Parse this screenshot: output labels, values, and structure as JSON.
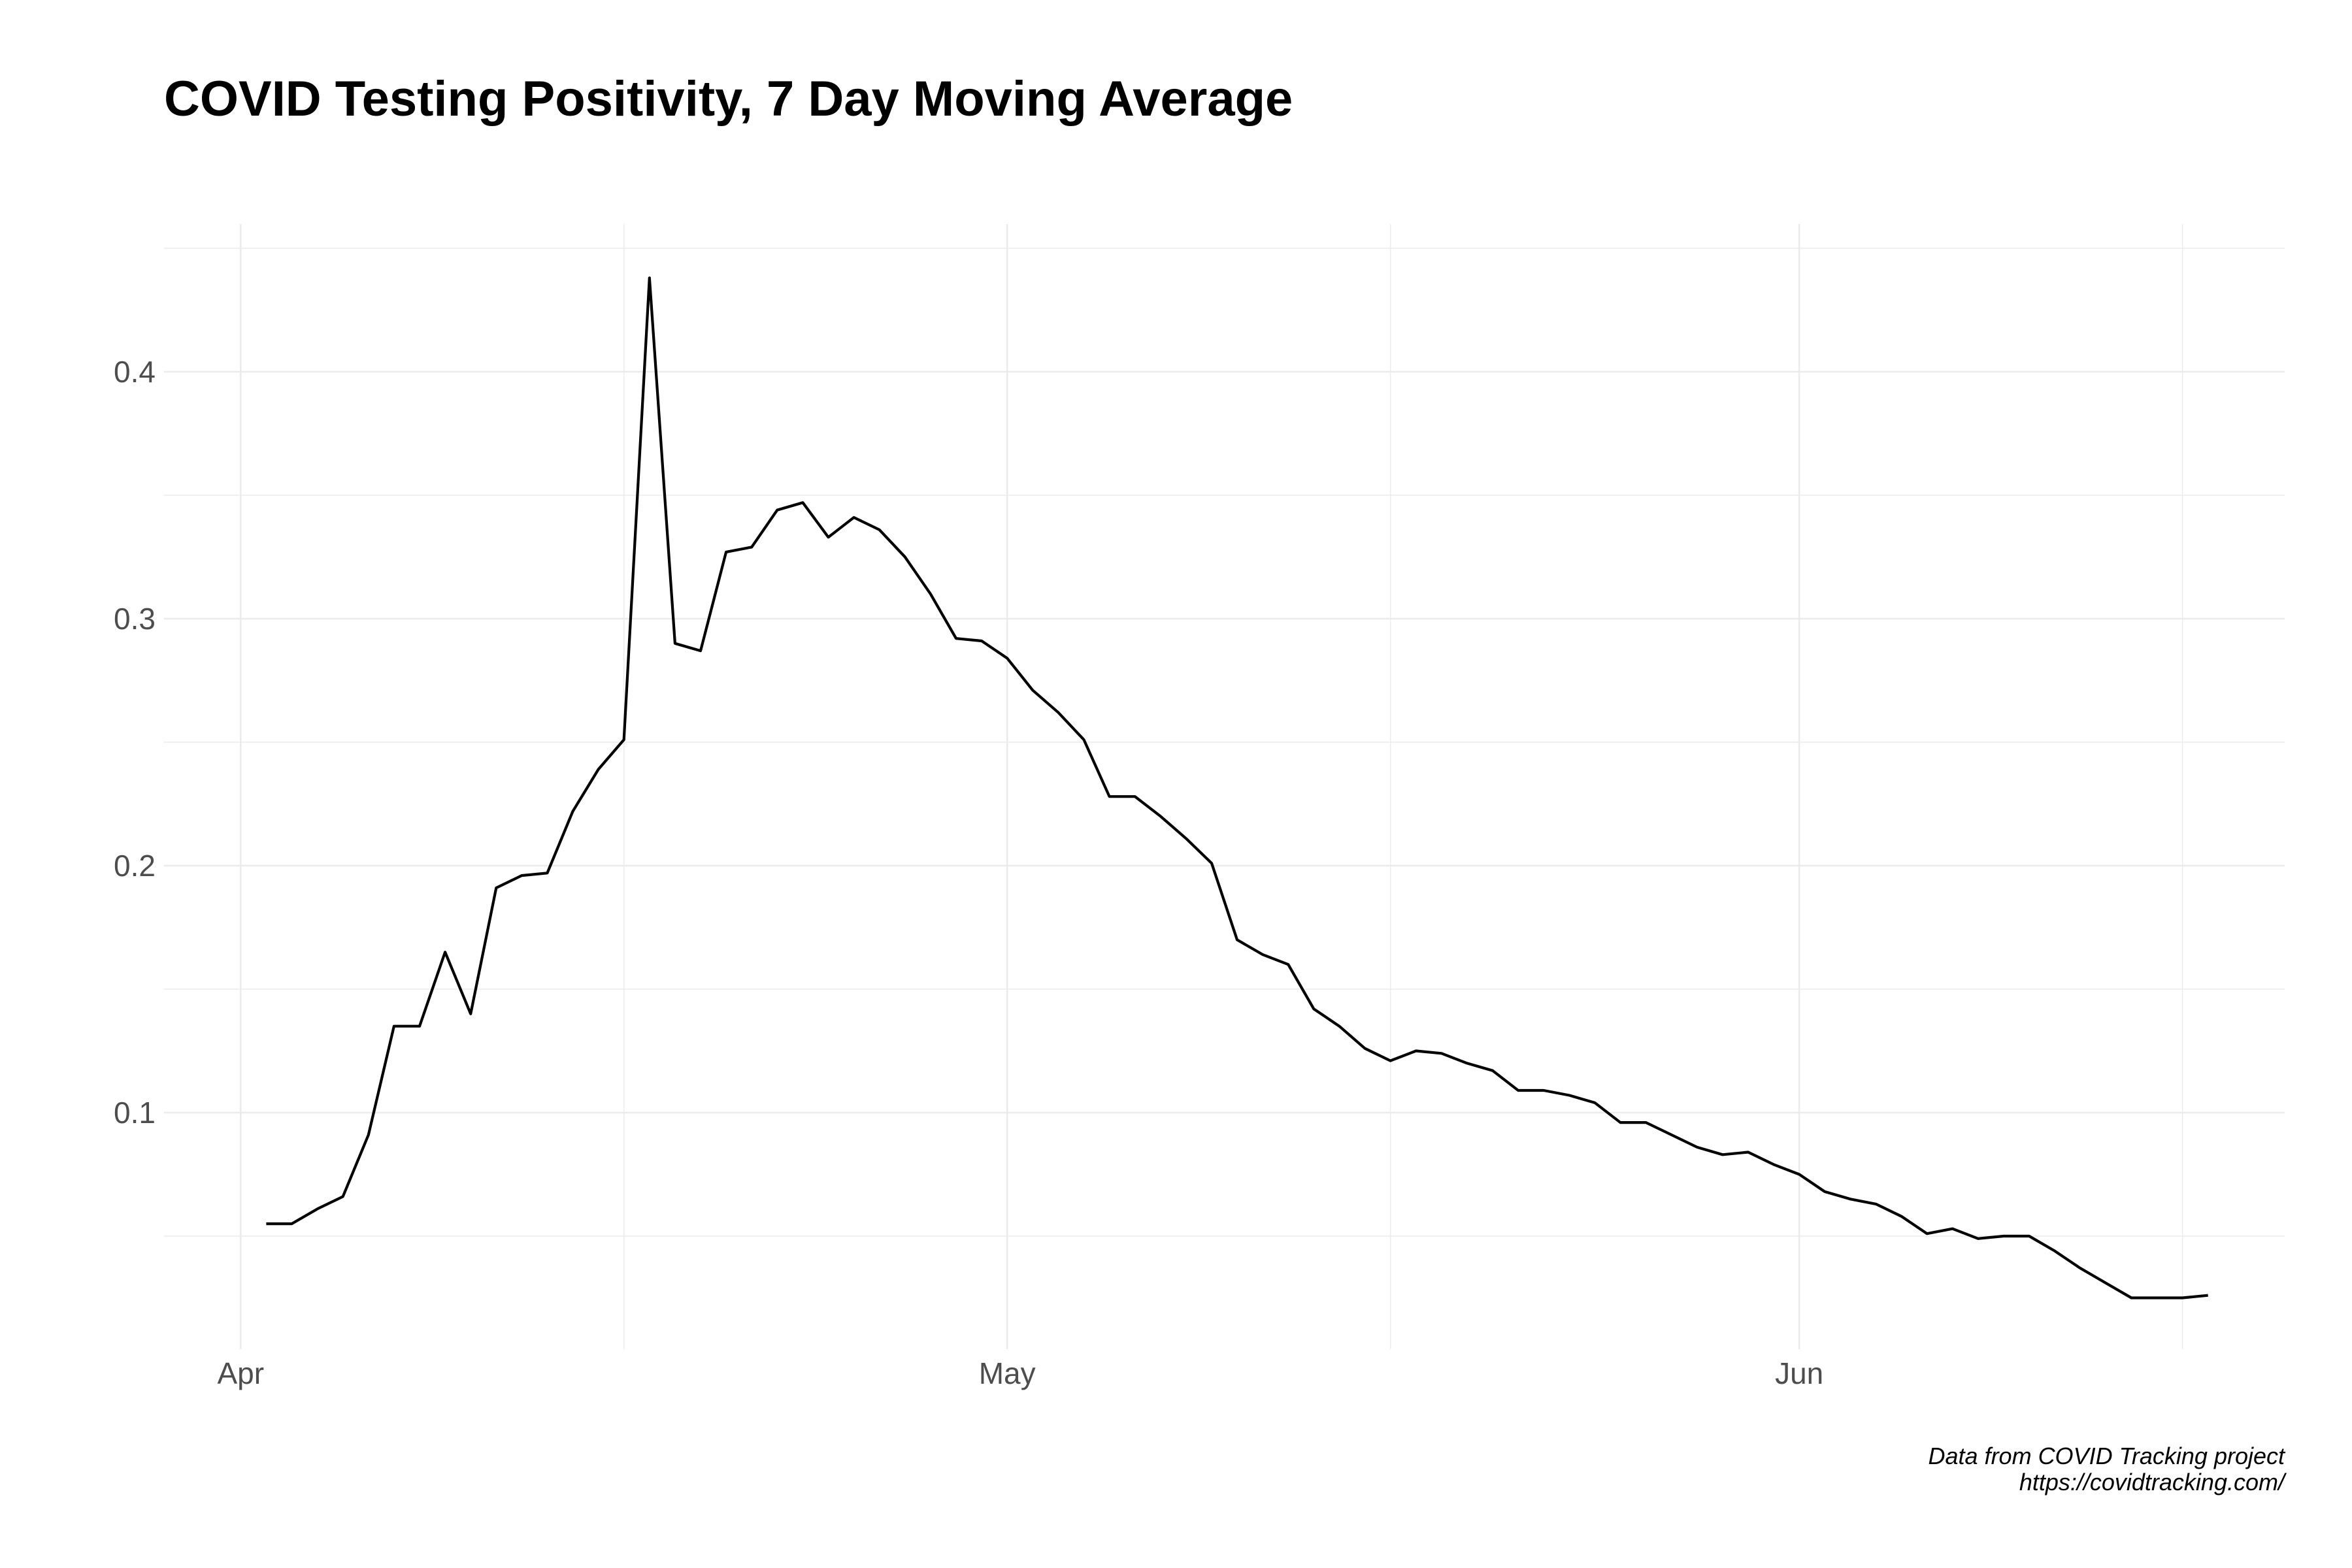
{
  "chart_data": {
    "type": "line",
    "title": "COVID Testing Positivity, 7 Day Moving Average",
    "xlabel": "",
    "ylabel": "",
    "x_axis": {
      "type": "date",
      "range": [
        "2020-03-29",
        "2020-06-20"
      ],
      "major_ticks": [
        {
          "date": "2020-04-01",
          "label": "Apr"
        },
        {
          "date": "2020-05-01",
          "label": "May"
        },
        {
          "date": "2020-06-01",
          "label": "Jun"
        }
      ],
      "minor_ticks": [
        "2020-04-16",
        "2020-05-16",
        "2020-06-16"
      ]
    },
    "y_axis": {
      "range": [
        0.0,
        0.45
      ],
      "major_ticks": [
        0.1,
        0.2,
        0.3,
        0.4
      ],
      "tick_labels": [
        "0.1",
        "0.2",
        "0.3",
        "0.4"
      ],
      "minor_ticks": [
        0.05,
        0.15,
        0.25,
        0.35,
        0.45
      ]
    },
    "grid": true,
    "series": [
      {
        "color": "#000000",
        "x": [
          "2020-04-02",
          "2020-04-03",
          "2020-04-04",
          "2020-04-05",
          "2020-04-06",
          "2020-04-07",
          "2020-04-08",
          "2020-04-09",
          "2020-04-10",
          "2020-04-11",
          "2020-04-12",
          "2020-04-13",
          "2020-04-14",
          "2020-04-15",
          "2020-04-16",
          "2020-04-17",
          "2020-04-18",
          "2020-04-19",
          "2020-04-20",
          "2020-04-21",
          "2020-04-22",
          "2020-04-23",
          "2020-04-24",
          "2020-04-25",
          "2020-04-26",
          "2020-04-27",
          "2020-04-28",
          "2020-04-29",
          "2020-04-30",
          "2020-05-01",
          "2020-05-02",
          "2020-05-03",
          "2020-05-04",
          "2020-05-05",
          "2020-05-06",
          "2020-05-07",
          "2020-05-08",
          "2020-05-09",
          "2020-05-10",
          "2020-05-11",
          "2020-05-12",
          "2020-05-13",
          "2020-05-14",
          "2020-05-15",
          "2020-05-16",
          "2020-05-17",
          "2020-05-18",
          "2020-05-19",
          "2020-05-20",
          "2020-05-21",
          "2020-05-22",
          "2020-05-23",
          "2020-05-24",
          "2020-05-25",
          "2020-05-26",
          "2020-05-27",
          "2020-05-28",
          "2020-05-29",
          "2020-05-30",
          "2020-05-31",
          "2020-06-01",
          "2020-06-02",
          "2020-06-03",
          "2020-06-04",
          "2020-06-05",
          "2020-06-06",
          "2020-06-07",
          "2020-06-08",
          "2020-06-09",
          "2020-06-10",
          "2020-06-11",
          "2020-06-12",
          "2020-06-13",
          "2020-06-14",
          "2020-06-15",
          "2020-06-16",
          "2020-06-17"
        ],
        "y": [
          0.055,
          0.055,
          0.061,
          0.066,
          0.091,
          0.135,
          0.135,
          0.165,
          0.14,
          0.191,
          0.196,
          0.197,
          0.222,
          0.239,
          0.251,
          0.438,
          0.29,
          0.287,
          0.327,
          0.329,
          0.344,
          0.347,
          0.333,
          0.341,
          0.336,
          0.325,
          0.31,
          0.292,
          0.291,
          0.284,
          0.271,
          0.262,
          0.251,
          0.228,
          0.228,
          0.22,
          0.211,
          0.201,
          0.17,
          0.164,
          0.16,
          0.142,
          0.135,
          0.126,
          0.121,
          0.125,
          0.124,
          0.12,
          0.117,
          0.109,
          0.109,
          0.107,
          0.104,
          0.096,
          0.096,
          0.091,
          0.086,
          0.083,
          0.084,
          0.079,
          0.075,
          0.068,
          0.065,
          0.063,
          0.058,
          0.051,
          0.053,
          0.049,
          0.05,
          0.05,
          0.044,
          0.037,
          0.031,
          0.025,
          0.025,
          0.025,
          0.026
        ]
      }
    ],
    "caption": [
      "Data from COVID Tracking project",
      "https://covidtracking.com/"
    ]
  }
}
